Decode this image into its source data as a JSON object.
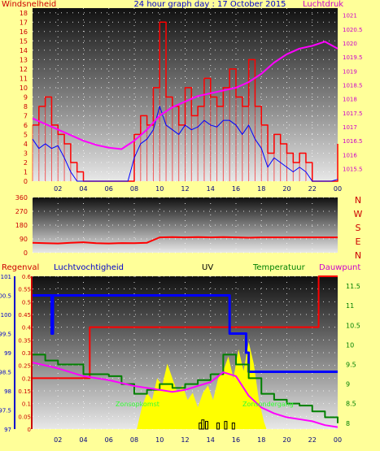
{
  "header": {
    "left_label": "Windsnelheid",
    "title": "24 hour graph day : 17 October 2015",
    "right_label": "Luchtdruk"
  },
  "bottom_header": {
    "regen": "Regenval",
    "vocht": "Luchtvochtigheid",
    "uv": "UV",
    "temp": "Temperatuur",
    "dauw": "Dauwpunt"
  },
  "inline_labels": {
    "zon": "Zonsopkomst",
    "zonsonder": "Zonsondergang"
  },
  "colors": {
    "background": "#ffff99",
    "wind_avg": "#0000ff",
    "wind_gust": "#ff0000",
    "pressure": "#ff00ff",
    "direction": "#ff0000",
    "rain": "#ff0000",
    "humidity": "#0000ff",
    "uv": "#000000",
    "temperature": "#008000",
    "dewpoint": "#ff00ff",
    "solar": "#ffff00",
    "grid": "#ffffff"
  },
  "chart_data": [
    {
      "type": "line",
      "x_ticks": [
        "02",
        "04",
        "06",
        "08",
        "10",
        "12",
        "14",
        "16",
        "18",
        "20",
        "22",
        "00"
      ],
      "yleft_ticks": [
        "0",
        "1",
        "2",
        "3",
        "4",
        "5",
        "6",
        "7",
        "8",
        "9",
        "10",
        "11",
        "12",
        "13",
        "14",
        "15",
        "16",
        "17",
        "18"
      ],
      "ylim_left": [
        0,
        18.5
      ],
      "yright_ticks": [
        "1015.5",
        "1016",
        "1016.5",
        "1017",
        "1017.5",
        "1018",
        "1018.5",
        "1019",
        "1019.5",
        "1020",
        "1020.5",
        "1021"
      ],
      "ylim_right": [
        1015.05,
        1021.25
      ],
      "series": [
        {
          "axis": "left",
          "x": [
            0,
            0.5,
            1,
            1.5,
            2,
            2.5,
            3,
            3.5,
            4,
            4.5,
            5,
            5.5,
            6,
            6.5,
            7,
            7.5,
            8,
            8.5,
            9,
            9.5,
            10,
            10.5,
            11,
            11.5,
            12,
            12.5,
            13,
            13.5,
            14,
            14.5,
            15,
            15.5,
            16,
            16.5,
            17,
            17.5,
            18,
            18.5,
            19,
            19.5,
            20,
            20.5,
            21,
            21.5,
            22,
            22.5,
            23,
            23.5,
            24
          ],
          "values": [
            6,
            8,
            9,
            6,
            5,
            4,
            2,
            1,
            0,
            0,
            0,
            0,
            0,
            0,
            0,
            0,
            5,
            7,
            6,
            10,
            17,
            9,
            8,
            6,
            10,
            7,
            8,
            11,
            9,
            8,
            10,
            12,
            9,
            8,
            13,
            8,
            6,
            3,
            5,
            4,
            3,
            2,
            3,
            2,
            0,
            0,
            0,
            0,
            4
          ]
        },
        {
          "axis": "left",
          "x": [
            0,
            0.5,
            1,
            1.5,
            2,
            2.5,
            3,
            3.5,
            4,
            4.5,
            5,
            5.5,
            6,
            6.5,
            7,
            7.5,
            8,
            8.5,
            9,
            9.5,
            10,
            10.5,
            11,
            11.5,
            12,
            12.5,
            13,
            13.5,
            14,
            14.5,
            15,
            15.5,
            16,
            16.5,
            17,
            17.5,
            18,
            18.5,
            19,
            19.5,
            20,
            20.5,
            21,
            21.5,
            22,
            22.5,
            23,
            23.5,
            24
          ],
          "values": [
            4.5,
            3.5,
            4,
            3.5,
            3.8,
            2.5,
            1,
            0,
            0,
            0,
            0,
            0,
            0,
            0,
            0,
            0,
            2.5,
            4,
            4.5,
            5.5,
            8,
            6,
            5.5,
            5,
            6,
            5.5,
            5.8,
            6.5,
            6,
            5.8,
            6.5,
            6.5,
            6,
            5,
            6,
            4.5,
            3.5,
            1.5,
            2.5,
            2,
            1.5,
            1,
            1.5,
            1,
            0,
            0,
            0,
            0,
            0.2
          ]
        },
        {
          "axis": "right",
          "x": [
            0,
            1,
            2,
            3,
            4,
            5,
            6,
            7,
            8,
            9,
            10,
            11,
            12,
            13,
            14,
            15,
            16,
            17,
            18,
            19,
            20,
            21,
            22,
            23,
            24
          ],
          "values": [
            1017.3,
            1017.1,
            1016.9,
            1016.7,
            1016.5,
            1016.35,
            1016.25,
            1016.2,
            1016.5,
            1016.9,
            1017.4,
            1017.7,
            1017.9,
            1018.1,
            1018.2,
            1018.3,
            1018.4,
            1018.6,
            1018.9,
            1019.3,
            1019.6,
            1019.8,
            1019.9,
            1020.05,
            1019.8
          ]
        }
      ]
    },
    {
      "type": "line",
      "y_ticks": [
        "0",
        "90",
        "180",
        "270",
        "360"
      ],
      "ylim": [
        0,
        360
      ],
      "direction_labels": [
        "N",
        "W",
        "S",
        "E",
        "N"
      ],
      "series": [
        {
          "x": [
            0,
            1,
            2,
            3,
            4,
            5,
            6,
            7,
            8,
            9,
            10,
            11,
            12,
            13,
            14,
            15,
            16,
            17,
            18,
            19,
            20,
            21,
            22,
            23,
            24
          ],
          "values": [
            65,
            62,
            60,
            65,
            68,
            62,
            60,
            63,
            62,
            65,
            100,
            102,
            100,
            102,
            100,
            102,
            100,
            98,
            100,
            100,
            100,
            100,
            100,
            100,
            100
          ]
        }
      ]
    },
    {
      "type": "line",
      "y_rain_ticks": [
        "0",
        "0.05",
        "0.1",
        "0.15",
        "0.2",
        "0.25",
        "0.3",
        "0.35",
        "0.4",
        "0.45",
        "0.5",
        "0.55",
        "0.6"
      ],
      "ylim_rain": [
        0,
        0.6
      ],
      "y_hum_ticks": [
        "97",
        "97.5",
        "98",
        "98.5",
        "99",
        "99.5",
        "100",
        "100.5",
        "101"
      ],
      "ylim_hum": [
        97,
        101
      ],
      "y_temp_ticks": [
        "8",
        "8.5",
        "9",
        "9.5",
        "10",
        "10.5",
        "11",
        "11.5"
      ],
      "ylim_temp": [
        7.85,
        11.75
      ],
      "series": [
        {
          "axis": "rain",
          "x": [
            0,
            4.5,
            4.5,
            22.5,
            22.5,
            24
          ],
          "values": [
            0.2,
            0.2,
            0.4,
            0.4,
            0.6,
            0.6
          ]
        },
        {
          "axis": "hum",
          "x": [
            0,
            1.5,
            1.5,
            1.6,
            1.6,
            15.5,
            15.5,
            16.8,
            16.8,
            17,
            17,
            24
          ],
          "values": [
            100.5,
            100.5,
            99.5,
            99.5,
            100.5,
            100.5,
            99.5,
            99.5,
            99,
            99,
            98.5,
            98.5
          ]
        },
        {
          "axis": "temp",
          "x": [
            0,
            1,
            2,
            3,
            4,
            5,
            6,
            7,
            8,
            9,
            10,
            11,
            12,
            13,
            14,
            15,
            16,
            17,
            18,
            19,
            20,
            21,
            22,
            23,
            24
          ],
          "values": [
            9.75,
            9.6,
            9.5,
            9.5,
            9.25,
            9.25,
            9.2,
            9.0,
            8.75,
            8.85,
            9.0,
            8.9,
            9.0,
            9.1,
            9.25,
            9.75,
            9.5,
            9.15,
            8.75,
            8.6,
            8.5,
            8.45,
            8.3,
            8.15,
            8.0
          ]
        },
        {
          "axis": "temp",
          "x": [
            0,
            2,
            4,
            6,
            8,
            9,
            10,
            11,
            12,
            13,
            14,
            15,
            16,
            17,
            18,
            19,
            20,
            21,
            22,
            23,
            24
          ],
          "values": [
            9.55,
            9.4,
            9.2,
            9.1,
            8.95,
            8.9,
            8.85,
            8.8,
            8.85,
            8.95,
            9.05,
            9.3,
            9.2,
            8.7,
            8.4,
            8.25,
            8.15,
            8.1,
            8.05,
            7.95,
            7.9
          ]
        }
      ]
    }
  ]
}
